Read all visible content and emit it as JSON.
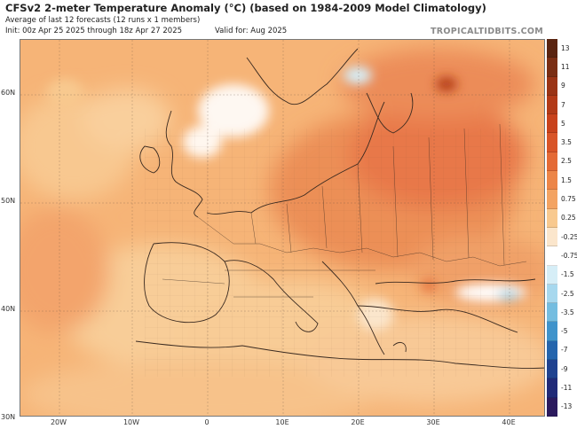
{
  "header": {
    "title": "CFSv2 2-meter Temperature Anomaly (°C) (based on 1984-2009 Model Climatology)",
    "subtitle": "Average of last 12 forecasts (12 runs x 1 members)",
    "init": "Init: 00z Apr 25 2025 through 18z Apr 27 2025",
    "valid": "Valid for: Aug 2025",
    "brand": "TROPICALTIDBITS.COM"
  },
  "axes": {
    "lat_labels": [
      "60N",
      "50N",
      "40N",
      "30N"
    ],
    "lon_labels": [
      "20W",
      "10W",
      "0",
      "10E",
      "20E",
      "30E",
      "40E"
    ]
  },
  "colorbar": {
    "labels": [
      "13",
      "11",
      "9",
      "7",
      "5",
      "3.5",
      "2.5",
      "1.5",
      "0.75",
      "0.25",
      "-0.25",
      "-0.75",
      "-1.5",
      "-2.5",
      "-3.5",
      "-5",
      "-7",
      "-9",
      "-11",
      "-13"
    ],
    "colors": [
      "#5a2410",
      "#7a2e14",
      "#9a3416",
      "#b23a18",
      "#c8421c",
      "#d85428",
      "#e46a36",
      "#ec8548",
      "#f3a362",
      "#f8c98f",
      "#fbe6cc",
      "#ffffff",
      "#d6eef7",
      "#a7d8ee",
      "#74bde0",
      "#3f93cb",
      "#2465ad",
      "#1f4290",
      "#202a78",
      "#2b1a5e"
    ]
  },
  "colors": {
    "land_border": "#3a2a20",
    "ocean_base": "#f6b477"
  }
}
